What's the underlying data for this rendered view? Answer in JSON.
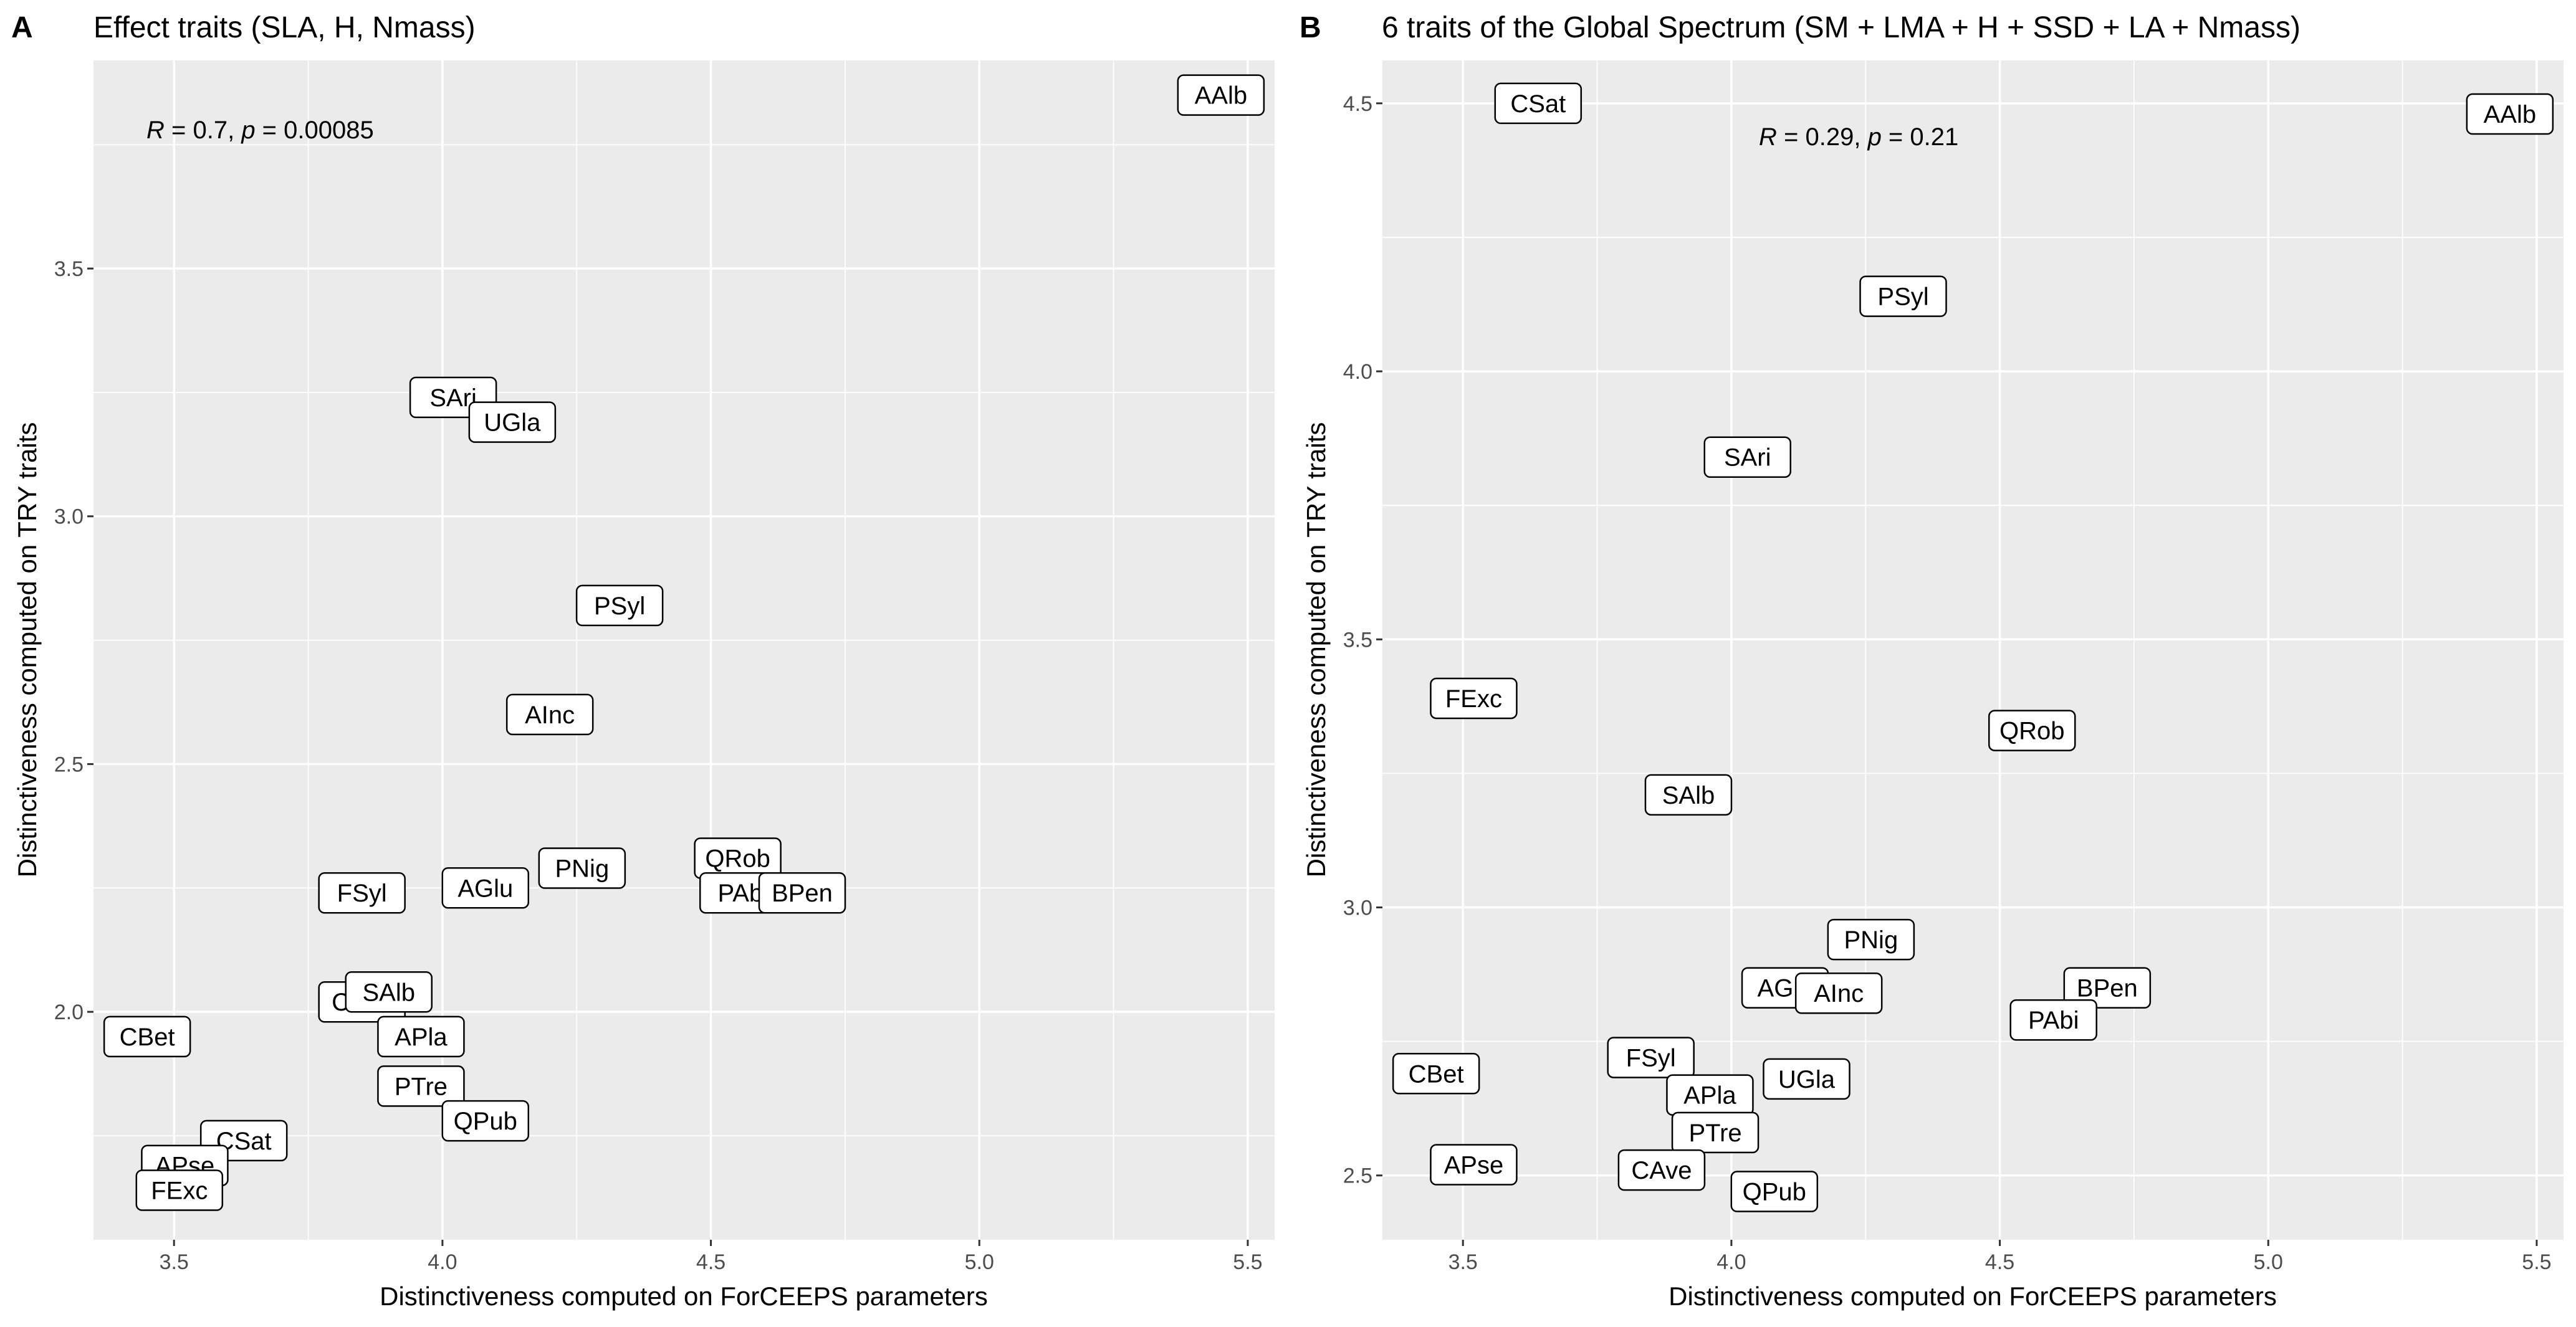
{
  "colors": {
    "panel_bg": "#ebebeb",
    "grid": "#ffffff",
    "label_border": "#000000",
    "tick_text": "#4d4d4d"
  },
  "chart_data": [
    {
      "type": "scatter",
      "panel_letter": "A",
      "title": "Effect traits (SLA, H, Nmass)",
      "xlabel": "Distinctiveness computed on ForCEEPS parameters",
      "ylabel": "Distinctiveness computed on TRY traits",
      "xlim": [
        3.35,
        5.55
      ],
      "ylim": [
        1.54,
        3.92
      ],
      "xticks": [
        "3.5",
        "4.0",
        "4.5",
        "5.0",
        "5.5"
      ],
      "yticks": [
        "2.0",
        "2.5",
        "3.0",
        "3.5"
      ],
      "grid": true,
      "annotation": {
        "r_label": "R",
        "r_value": " = 0.7, ",
        "p_label": "p",
        "p_value": " = 0.00085"
      },
      "points": [
        {
          "label": "AAlb",
          "x": 5.45,
          "y": 3.85
        },
        {
          "label": "SAri",
          "x": 4.02,
          "y": 3.24
        },
        {
          "label": "UGla",
          "x": 4.13,
          "y": 3.19
        },
        {
          "label": "PSyl",
          "x": 4.33,
          "y": 2.82
        },
        {
          "label": "AInc",
          "x": 4.2,
          "y": 2.6
        },
        {
          "label": "QRob",
          "x": 4.55,
          "y": 2.31
        },
        {
          "label": "PNig",
          "x": 4.26,
          "y": 2.29
        },
        {
          "label": "PAbi",
          "x": 4.56,
          "y": 2.24
        },
        {
          "label": "BPen",
          "x": 4.67,
          "y": 2.24
        },
        {
          "label": "AGlu",
          "x": 4.08,
          "y": 2.25
        },
        {
          "label": "FSyl",
          "x": 3.85,
          "y": 2.24
        },
        {
          "label": "CAve",
          "x": 3.85,
          "y": 2.02
        },
        {
          "label": "SAlb",
          "x": 3.9,
          "y": 2.04
        },
        {
          "label": "CBet",
          "x": 3.45,
          "y": 1.95
        },
        {
          "label": "APla",
          "x": 3.96,
          "y": 1.95
        },
        {
          "label": "PTre",
          "x": 3.96,
          "y": 1.85
        },
        {
          "label": "QPub",
          "x": 4.08,
          "y": 1.78
        },
        {
          "label": "CSat",
          "x": 3.63,
          "y": 1.74
        },
        {
          "label": "APse",
          "x": 3.52,
          "y": 1.69
        },
        {
          "label": "FExc",
          "x": 3.51,
          "y": 1.64
        }
      ]
    },
    {
      "type": "scatter",
      "panel_letter": "B",
      "title": "6 traits of the Global Spectrum (SM + LMA + H + SSD + LA  + Nmass)",
      "xlabel": "Distinctiveness computed on ForCEEPS parameters",
      "ylabel": "Distinctiveness computed on TRY traits",
      "xlim": [
        3.35,
        5.55
      ],
      "ylim": [
        2.38,
        4.58
      ],
      "xticks": [
        "3.5",
        "4.0",
        "4.5",
        "5.0",
        "5.5"
      ],
      "yticks": [
        "2.5",
        "3.0",
        "3.5",
        "4.0",
        "4.5"
      ],
      "grid": true,
      "annotation": {
        "r_label": "R",
        "r_value": " = 0.29, ",
        "p_label": "p",
        "p_value": " = 0.21"
      },
      "points": [
        {
          "label": "CSat",
          "x": 3.64,
          "y": 4.5
        },
        {
          "label": "AAlb",
          "x": 5.45,
          "y": 4.48
        },
        {
          "label": "PSyl",
          "x": 4.32,
          "y": 4.14
        },
        {
          "label": "SAri",
          "x": 4.03,
          "y": 3.84
        },
        {
          "label": "FExc",
          "x": 3.52,
          "y": 3.39
        },
        {
          "label": "QRob",
          "x": 4.56,
          "y": 3.33
        },
        {
          "label": "SAlb",
          "x": 3.92,
          "y": 3.21
        },
        {
          "label": "PNig",
          "x": 4.26,
          "y": 2.94
        },
        {
          "label": "BPen",
          "x": 4.7,
          "y": 2.85
        },
        {
          "label": "AGlu",
          "x": 4.1,
          "y": 2.85
        },
        {
          "label": "AInc",
          "x": 4.2,
          "y": 2.84
        },
        {
          "label": "PAbi",
          "x": 4.6,
          "y": 2.79
        },
        {
          "label": "FSyl",
          "x": 3.85,
          "y": 2.72
        },
        {
          "label": "CBet",
          "x": 3.45,
          "y": 2.69
        },
        {
          "label": "UGla",
          "x": 4.14,
          "y": 2.68
        },
        {
          "label": "APla",
          "x": 3.96,
          "y": 2.65
        },
        {
          "label": "PTre",
          "x": 3.97,
          "y": 2.58
        },
        {
          "label": "APse",
          "x": 3.52,
          "y": 2.52
        },
        {
          "label": "CAve",
          "x": 3.87,
          "y": 2.51
        },
        {
          "label": "QPub",
          "x": 4.08,
          "y": 2.47
        }
      ]
    }
  ]
}
